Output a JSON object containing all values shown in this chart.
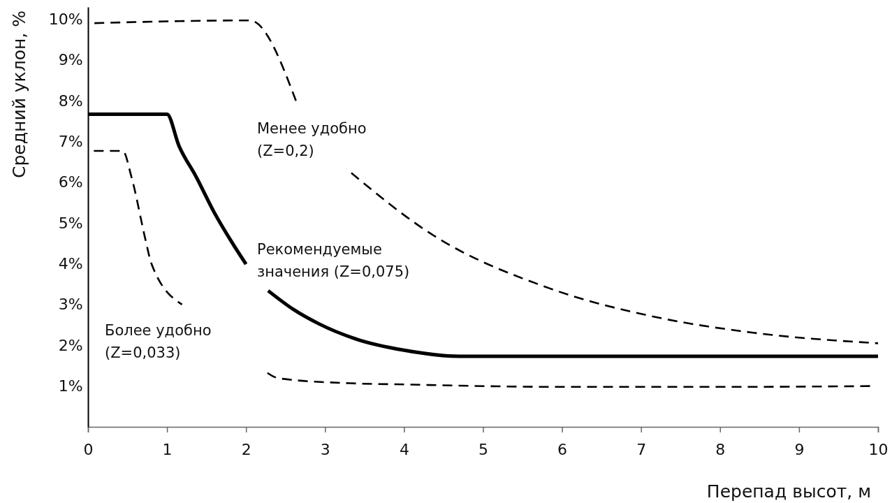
{
  "chart_data": {
    "type": "line",
    "xlabel": "Перепад высот, м",
    "ylabel": "Средний уклон, %",
    "xlim": [
      0,
      10
    ],
    "ylim": [
      0,
      10.3
    ],
    "xticks": [
      0,
      1,
      2,
      3,
      4,
      5,
      6,
      7,
      8,
      9,
      10
    ],
    "yticks": [
      {
        "value": 1,
        "label": "1%"
      },
      {
        "value": 2,
        "label": "2%"
      },
      {
        "value": 3,
        "label": "3%"
      },
      {
        "value": 4,
        "label": "4%"
      },
      {
        "value": 5,
        "label": "5%"
      },
      {
        "value": 6,
        "label": "6%"
      },
      {
        "value": 7,
        "label": "7%"
      },
      {
        "value": 8,
        "label": "8%"
      },
      {
        "value": 9,
        "label": "9%"
      },
      {
        "value": 10,
        "label": "10%"
      }
    ],
    "grid": false,
    "marker": "none",
    "series": [
      {
        "color": "#000000",
        "line_style": "dashed",
        "x": [
          0,
          2.05,
          2.64,
          2.7,
          3.27,
          4.37,
          5.84,
          7.17,
          8.42,
          10
        ],
        "values": [
          9.9,
          9.97,
          7.96,
          null,
          6.33,
          4.7,
          3.4,
          2.7,
          2.31,
          2.05
        ]
      },
      {
        "color": "#000000",
        "line_style": "solid",
        "x": [
          0,
          1,
          1.15,
          1.37,
          1.6,
          1.83,
          2.0,
          2.1,
          2.28,
          2.6,
          2.92,
          3.4,
          4,
          4.7,
          6,
          8,
          10
        ],
        "values": [
          7.67,
          7.67,
          6.9,
          6.13,
          5.25,
          4.5,
          3.99,
          null,
          3.34,
          2.88,
          2.53,
          2.15,
          1.88,
          1.73,
          1.73,
          1.73,
          1.73
        ]
      },
      {
        "color": "#000000",
        "line_style": "dashed",
        "x": [
          0,
          0.44,
          0.55,
          0.73,
          0.8,
          1.19,
          1.5,
          2.21,
          2.42,
          3.31,
          4,
          6,
          8,
          9.9
        ],
        "values": [
          6.77,
          6.77,
          6.13,
          4.57,
          4.02,
          3.0,
          null,
          1.41,
          1.19,
          1.07,
          1.04,
          0.98,
          0.98,
          1.0
        ]
      }
    ],
    "annotations": [
      "Менее удобно\n(Z=0,2)",
      "Рекомендуемые\nзначения (Z=0,075)",
      "Более удобно\n(Z=0,033)"
    ]
  }
}
